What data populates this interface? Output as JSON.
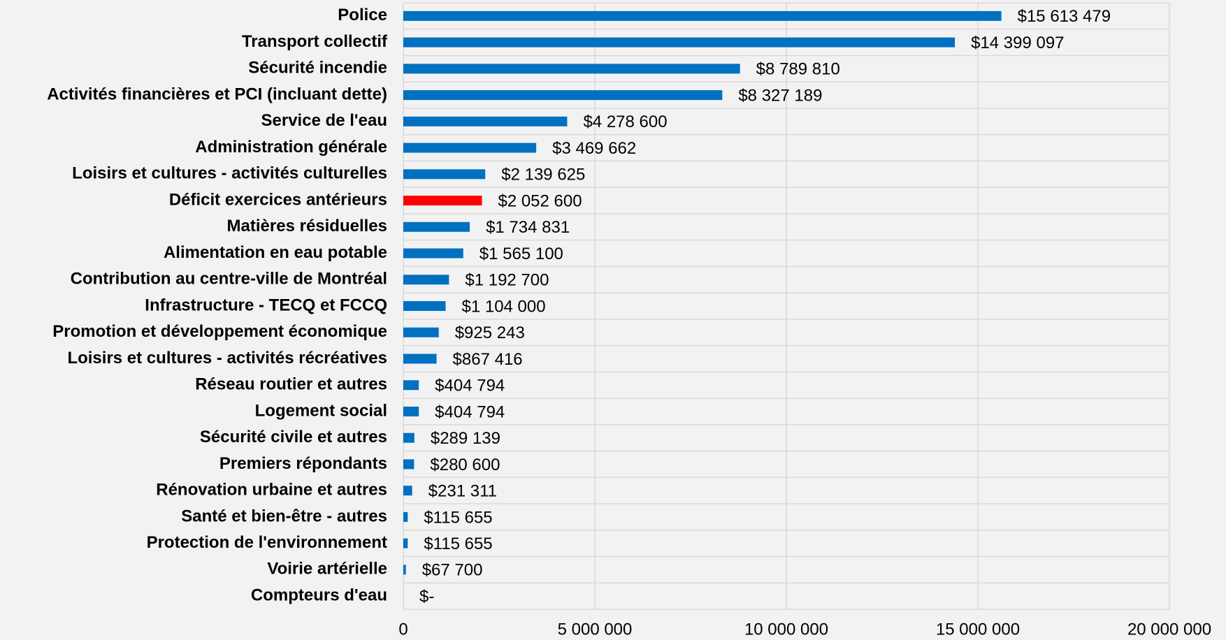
{
  "chart_data": {
    "type": "bar",
    "orientation": "horizontal",
    "categories": [
      "Police",
      "Transport collectif",
      "Sécurité incendie",
      "Activités financières et PCI (incluant dette)",
      "Service de l'eau",
      "Administration générale",
      "Loisirs et cultures - activités culturelles",
      "Déficit exercices antérieurs",
      "Matières résiduelles",
      "Alimentation en eau potable",
      "Contribution au centre-ville de Montréal",
      "Infrastructure - TECQ et FCCQ",
      "Promotion et développement économique",
      "Loisirs et cultures - activités récréatives",
      "Réseau routier et autres",
      "Logement social",
      "Sécurité civile et autres",
      "Premiers répondants",
      "Rénovation urbaine et autres",
      "Santé et bien-être - autres",
      "Protection de l'environnement",
      "Voirie artérielle",
      "Compteurs d'eau"
    ],
    "values": [
      15613479,
      14399097,
      8789810,
      8327189,
      4278600,
      3469662,
      2139625,
      2052600,
      1734831,
      1565100,
      1192700,
      1104000,
      925243,
      867416,
      404794,
      404794,
      289139,
      280600,
      231311,
      115655,
      115655,
      67700,
      0
    ],
    "value_labels": [
      "$15 613 479",
      "$14 399 097",
      "$8 789 810",
      "$8 327 189",
      "$4 278 600",
      "$3 469 662",
      "$2 139 625",
      "$2 052 600",
      "$1 734 831",
      "$1 565 100",
      "$1 192 700",
      "$1 104 000",
      "$925 243",
      "$867 416",
      "$404 794",
      "$404 794",
      "$289 139",
      "$280 600",
      "$231 311",
      "$115 655",
      "$115 655",
      "$67 700",
      "$-"
    ],
    "colors": [
      "#0070c0",
      "#0070c0",
      "#0070c0",
      "#0070c0",
      "#0070c0",
      "#0070c0",
      "#0070c0",
      "#ff0000",
      "#0070c0",
      "#0070c0",
      "#0070c0",
      "#0070c0",
      "#0070c0",
      "#0070c0",
      "#0070c0",
      "#0070c0",
      "#0070c0",
      "#0070c0",
      "#0070c0",
      "#0070c0",
      "#0070c0",
      "#0070c0",
      "#0070c0"
    ],
    "xlim": [
      0,
      20000000
    ],
    "xticks": [
      0,
      {
        "value": 5000000,
        "label": "5 000 000"
      },
      {
        "value": 10000000,
        "label": "10 000 000"
      },
      {
        "value": 15000000,
        "label": "15 000 000"
      },
      {
        "value": 20000000,
        "label": "20 000 000"
      }
    ],
    "grid": true
  }
}
